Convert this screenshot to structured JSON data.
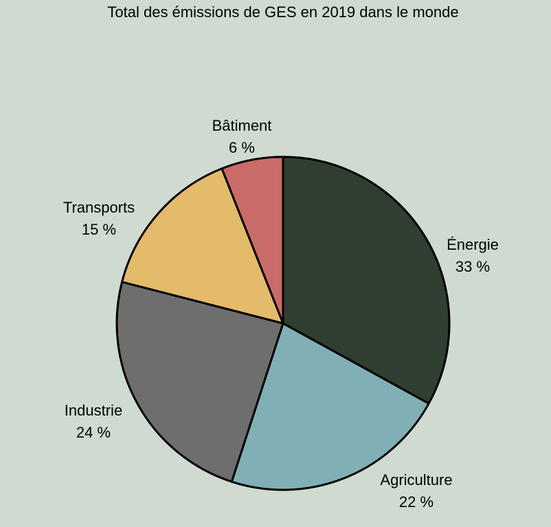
{
  "chart_data": {
    "type": "pie",
    "title": "Total des émissions de GES en 2019 dans le monde",
    "slices": [
      {
        "label": "Énergie",
        "value": 33,
        "value_label": "33 %",
        "color": "#2f3e30"
      },
      {
        "label": "Agriculture",
        "value": 22,
        "value_label": "22 %",
        "color": "#80b0b5"
      },
      {
        "label": "Industrie",
        "value": 24,
        "value_label": "24 %",
        "color": "#6e6e6e"
      },
      {
        "label": "Transports",
        "value": 15,
        "value_label": "15 %",
        "color": "#e4ba6b"
      },
      {
        "label": "Bâtiment",
        "value": 6,
        "value_label": "6 %",
        "color": "#c96b68"
      }
    ],
    "start_angle": "top",
    "direction": "clockwise",
    "legend": "none",
    "background_color": "#cfdbd0",
    "stroke_color": "#000000"
  }
}
